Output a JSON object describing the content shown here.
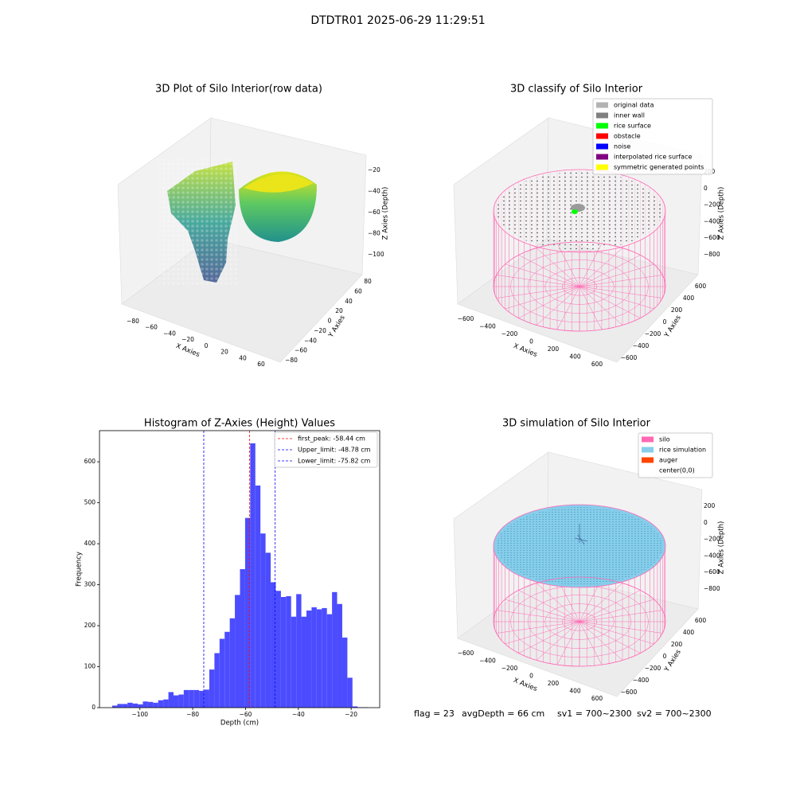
{
  "title": "DTDTR01 2025-06-29 11:29:51",
  "chart_data": [
    {
      "type": "scatter3d",
      "title": "3D Plot of Silo Interior(row data)",
      "xlabel": "X Axies",
      "ylabel": "Y Axies",
      "zlabel": "Z Axies (Depth)",
      "xticks": [
        {
          "value": -80,
          "label": "−80"
        },
        {
          "value": -60,
          "label": "−60"
        },
        {
          "value": -40,
          "label": "−40"
        },
        {
          "value": -20,
          "label": "−20"
        },
        0,
        20,
        40,
        60
      ],
      "yticks": [
        {
          "value": -80,
          "label": "−80"
        },
        {
          "value": -60,
          "label": "−60"
        },
        {
          "value": -40,
          "label": "−40"
        },
        {
          "value": -20,
          "label": "−20"
        },
        0,
        20,
        40,
        60,
        80
      ],
      "zticks": [
        {
          "value": -20,
          "label": "−20"
        },
        {
          "value": -40,
          "label": "−40"
        },
        {
          "value": -60,
          "label": "−60"
        },
        {
          "value": -80,
          "label": "−80"
        },
        {
          "value": -100,
          "label": "−100"
        }
      ]
    },
    {
      "type": "scatter3d",
      "title": "3D classify of Silo Interior",
      "xlabel": "X Axies",
      "ylabel": "Y Axies",
      "zlabel": "Z Axies (Depth)",
      "xticks": [
        {
          "value": -600,
          "label": "−600"
        },
        {
          "value": -400,
          "label": "−400"
        },
        {
          "value": -200,
          "label": "−200"
        },
        0,
        200,
        400,
        600
      ],
      "yticks": [
        {
          "value": -600,
          "label": "−600"
        },
        {
          "value": -400,
          "label": "−400"
        },
        {
          "value": -200,
          "label": "−200"
        },
        0,
        200,
        400,
        600
      ],
      "zticks": [
        200,
        0,
        {
          "value": -200,
          "label": "−200"
        },
        {
          "value": -400,
          "label": "−400"
        },
        {
          "value": -600,
          "label": "−600"
        },
        {
          "value": -800,
          "label": "−800"
        }
      ],
      "legend": [
        {
          "name": "original data",
          "color": "#b3b3b3"
        },
        {
          "name": "inner wall",
          "color": "#808080"
        },
        {
          "name": "rice surface",
          "color": "#00ff00"
        },
        {
          "name": "obstacle",
          "color": "#ff0000"
        },
        {
          "name": "noise",
          "color": "#0000ff"
        },
        {
          "name": "interpolated rice surface",
          "color": "#800080"
        },
        {
          "name": "symmetric generated points",
          "color": "#ffff00"
        }
      ]
    },
    {
      "type": "histogram",
      "title": "Histogram of Z-Axies (Height) Values",
      "xlabel": "Depth (cm)",
      "ylabel": "Frequency",
      "color": "#4c4cff",
      "bins": [
        -110.5,
        -108.56,
        -106.63,
        -104.69,
        -102.76,
        -100.82,
        -98.88,
        -96.95,
        -95.01,
        -93.08,
        -91.14,
        -89.2,
        -87.27,
        -85.33,
        -83.4,
        -81.46,
        -79.52,
        -77.59,
        -75.65,
        -73.72,
        -71.78,
        -69.84,
        -67.91,
        -65.97,
        -64.04,
        -62.1,
        -60.16,
        -58.23,
        -56.29,
        -54.36,
        -52.42,
        -50.48,
        -48.55,
        -46.61,
        -44.68,
        -42.74,
        -40.8,
        -38.87,
        -36.93,
        -35.0,
        -33.06,
        -31.12,
        -29.19,
        -27.25,
        -25.32,
        -23.38,
        -21.44,
        -19.51,
        -17.57,
        -15.64,
        -13.7
      ],
      "counts": [
        5,
        9,
        9,
        12,
        10,
        8,
        15,
        14,
        12,
        18,
        20,
        38,
        30,
        32,
        43,
        43,
        43,
        41,
        44,
        93,
        133,
        168,
        185,
        218,
        275,
        338,
        463,
        645,
        542,
        425,
        378,
        306,
        285,
        270,
        272,
        222,
        277,
        222,
        237,
        245,
        240,
        243,
        228,
        282,
        253,
        171,
        73,
        3,
        1,
        1
      ],
      "xlim": [
        -115.3,
        -9.2
      ],
      "ylim": [
        0,
        676
      ],
      "xticks": [
        {
          "value": -100,
          "label": "−100"
        },
        {
          "value": -80,
          "label": "−80"
        },
        {
          "value": -60,
          "label": "−60"
        },
        {
          "value": -40,
          "label": "−40"
        },
        {
          "value": -20,
          "label": "−20"
        }
      ],
      "yticks": [
        0,
        100,
        200,
        300,
        400,
        500,
        600
      ],
      "vlines": [
        {
          "name": "first_peak: -58.44 cm",
          "value": -58.44,
          "color": "#ff0000"
        },
        {
          "name": "Upper_limit: -48.78 cm",
          "value": -48.78,
          "color": "#0000ff"
        },
        {
          "name": "Lower_limit: -75.82 cm",
          "value": -75.82,
          "color": "#0000ff"
        }
      ]
    },
    {
      "type": "surface3d",
      "title": "3D simulation of Silo Interior",
      "xlabel": "X Axies",
      "ylabel": "Y Axies",
      "zlabel": "Z Axies (Depth)",
      "xticks": [
        {
          "value": -600,
          "label": "−600"
        },
        {
          "value": -400,
          "label": "−400"
        },
        {
          "value": -200,
          "label": "−200"
        },
        0,
        200,
        400,
        600
      ],
      "yticks": [
        {
          "value": -600,
          "label": "−600"
        },
        {
          "value": -400,
          "label": "−400"
        },
        {
          "value": -200,
          "label": "−200"
        },
        0,
        200,
        400,
        600
      ],
      "zticks": [
        200,
        0,
        {
          "value": -200,
          "label": "−200"
        },
        {
          "value": -400,
          "label": "−400"
        },
        {
          "value": -600,
          "label": "−600"
        },
        {
          "value": -800,
          "label": "−800"
        }
      ],
      "legend": [
        {
          "name": "silo",
          "color": "#ff69b4"
        },
        {
          "name": "rice simulation",
          "color": "#87ceeb"
        },
        {
          "name": "auger",
          "color": "#ff4500"
        },
        {
          "name": "center(0,0)",
          "color": "#ffffff"
        }
      ],
      "annotations": [
        "flag = 23",
        "avgDepth = 66 cm",
        "sv1 = 700~2300",
        "sv2 = 700~2300"
      ]
    }
  ]
}
